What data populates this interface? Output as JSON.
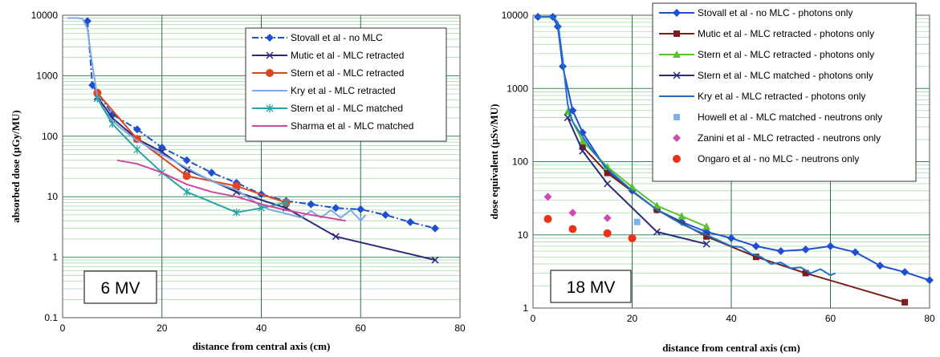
{
  "chart_data": [
    {
      "type": "line",
      "panel_label": "6 MV",
      "xlabel": "distance from central axis (cm)",
      "ylabel": "absorbed dose (µGy/MU)",
      "xlim": [
        0,
        80
      ],
      "ylim": [
        0.1,
        10000
      ],
      "yscale": "log",
      "x_ticks": [
        "0",
        "20",
        "40",
        "60",
        "80"
      ],
      "y_ticks": [
        "0.1",
        "1",
        "10",
        "100",
        "1000",
        "10000"
      ],
      "legend_position": "top-right",
      "grid": true,
      "series": [
        {
          "name": "Stovall et al - no MLC",
          "color": "#1f4fd1",
          "dash": "8,3,2,3",
          "marker": "diamond",
          "x": [
            5,
            6,
            10,
            15,
            20,
            25,
            30,
            35,
            40,
            45,
            50,
            55,
            60,
            65,
            70,
            75
          ],
          "y": [
            8000,
            700,
            230,
            130,
            65,
            40,
            25,
            17,
            11,
            8.5,
            7.5,
            6.5,
            6.2,
            5,
            3.8,
            3
          ]
        },
        {
          "name": "Mutic et al - MLC retracted",
          "color": "#2b2a7a",
          "marker": "x",
          "x": [
            7,
            10,
            15,
            20,
            25,
            35,
            45,
            55,
            75
          ],
          "y": [
            450,
            200,
            90,
            55,
            28,
            12,
            6.5,
            2.2,
            0.9
          ]
        },
        {
          "name": "Stern et al - MLC retracted",
          "color": "#e0451d",
          "marker": "circle",
          "x": [
            7,
            15,
            25,
            35,
            45
          ],
          "y": [
            520,
            90,
            22,
            15,
            8
          ]
        },
        {
          "name": "Kry et al - MLC retracted",
          "color": "#7fa8e6",
          "marker": "none",
          "x": [
            1,
            3,
            4,
            5,
            6,
            7,
            8,
            10,
            12,
            15,
            20,
            25,
            30,
            35,
            40,
            42,
            44,
            46,
            48,
            50,
            52,
            54,
            56,
            58,
            60,
            61
          ],
          "y": [
            9000,
            9000,
            8800,
            6000,
            1500,
            450,
            300,
            180,
            130,
            85,
            50,
            30,
            18,
            13,
            7,
            6,
            5.5,
            5,
            4.5,
            5.8,
            4.5,
            6,
            4.5,
            6,
            4,
            5
          ]
        },
        {
          "name": "Stern et al - MLC matched",
          "color": "#2aa3a3",
          "marker": "asterisk",
          "x": [
            7,
            10,
            15,
            20,
            25,
            35,
            40,
            45
          ],
          "y": [
            420,
            160,
            60,
            25,
            12,
            5.5,
            6.5,
            8
          ]
        },
        {
          "name": "Sharma et al - MLC matched",
          "color": "#d0469c",
          "marker": "none",
          "x": [
            11,
            15,
            20,
            25,
            30,
            35,
            40,
            45,
            50,
            57
          ],
          "y": [
            40,
            35,
            25,
            16,
            12,
            10,
            7.5,
            6,
            5,
            4
          ]
        }
      ]
    },
    {
      "type": "line",
      "panel_label": "18 MV",
      "xlabel": "distance from central axis (cm)",
      "ylabel": "dose equivalent (µSv/MU)",
      "xlim": [
        0,
        80
      ],
      "ylim": [
        1,
        10000
      ],
      "yscale": "log",
      "x_ticks": [
        "0",
        "20",
        "40",
        "60",
        "80"
      ],
      "y_ticks": [
        "1",
        "10",
        "100",
        "1000",
        "10000"
      ],
      "legend_position": "top-right",
      "grid": true,
      "series": [
        {
          "name": "Stovall et al - no MLC - photons only",
          "color": "#1f4fd1",
          "marker": "diamond",
          "x": [
            1,
            4,
            5,
            6,
            8,
            10,
            15,
            20,
            25,
            30,
            35,
            40,
            45,
            50,
            55,
            60,
            65,
            70,
            75,
            80
          ],
          "y": [
            9500,
            9500,
            7000,
            2000,
            500,
            250,
            75,
            40,
            22,
            15,
            11,
            9,
            7,
            6,
            6.3,
            7,
            5.8,
            3.8,
            3.1,
            2.4
          ]
        },
        {
          "name": "Mutic et al - MLC retracted - photons only",
          "color": "#7a1d1d",
          "marker": "square",
          "x": [
            10,
            15,
            25,
            35,
            45,
            55,
            75
          ],
          "y": [
            160,
            70,
            22,
            9.5,
            5,
            3,
            1.2
          ]
        },
        {
          "name": "Stern et al - MLC retracted - photons only",
          "color": "#59c230",
          "marker": "triangle",
          "x": [
            7,
            10,
            15,
            20,
            25,
            30,
            35
          ],
          "y": [
            480,
            190,
            85,
            45,
            25,
            18,
            13
          ]
        },
        {
          "name": "Stern et al - MLC matched - photons only",
          "color": "#2b2a7a",
          "marker": "x",
          "x": [
            7,
            10,
            15,
            25,
            35
          ],
          "y": [
            400,
            140,
            50,
            11,
            7.5
          ]
        },
        {
          "name": "Kry et al - MLC retracted - photons only",
          "color": "#1e73c8",
          "marker": "none",
          "x": [
            1,
            4,
            5,
            6,
            7,
            8,
            10,
            12,
            15,
            20,
            25,
            30,
            35,
            40,
            42,
            44,
            46,
            48,
            50,
            52,
            54,
            56,
            58,
            60,
            61
          ],
          "y": [
            9500,
            9500,
            8000,
            2500,
            600,
            350,
            220,
            140,
            80,
            40,
            22,
            14,
            10,
            7,
            6.8,
            5.5,
            5,
            4,
            4.2,
            3.5,
            3.6,
            3,
            3.4,
            2.8,
            3
          ]
        },
        {
          "name": "Howell et al - MLC matched - neutrons only",
          "color": "#7fb2e8",
          "marker": "square",
          "scatter": true,
          "x": [
            21
          ],
          "y": [
            15
          ]
        },
        {
          "name": "Zanini et al - MLC retracted - neutrons only",
          "color": "#d04ab5",
          "marker": "diamond",
          "scatter": true,
          "x": [
            3,
            8,
            15
          ],
          "y": [
            33,
            20,
            17
          ]
        },
        {
          "name": "Ongaro et al - no MLC - neutrons only",
          "color": "#e8321c",
          "marker": "circle",
          "scatter": true,
          "x": [
            3,
            8,
            15,
            20
          ],
          "y": [
            16.5,
            12,
            10.5,
            9
          ]
        }
      ]
    }
  ]
}
